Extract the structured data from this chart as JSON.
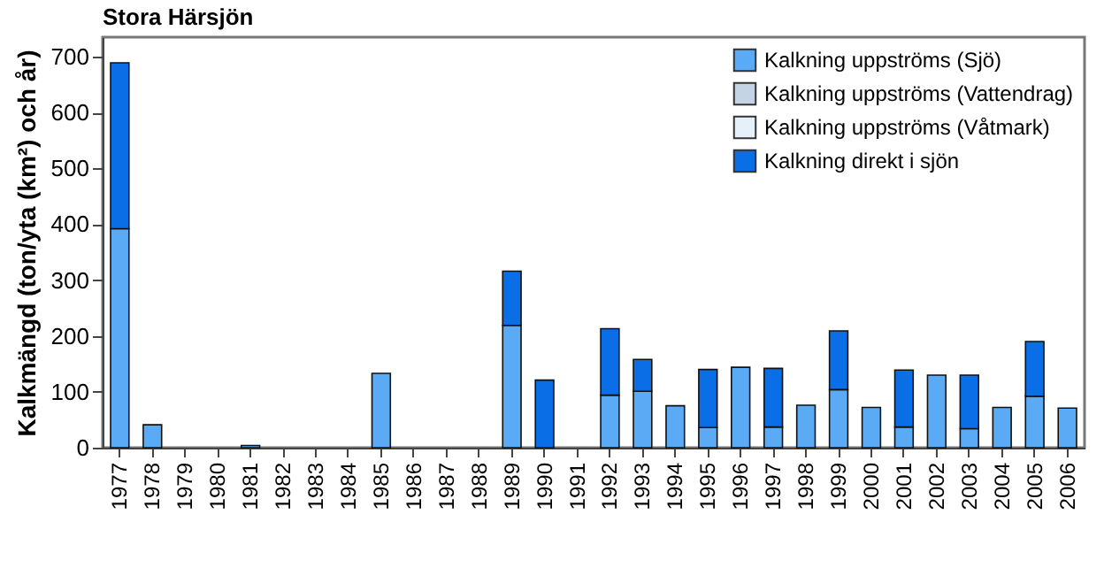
{
  "chart_data": {
    "type": "bar",
    "title": "Stora Härsjön",
    "ylabel": "Kalkmängd (ton/yta (km²) och år)",
    "stacked": true,
    "legend": "top right",
    "grid": false,
    "categories": [
      "1977",
      "1978",
      "1979",
      "1980",
      "1981",
      "1982",
      "1983",
      "1984",
      "1985",
      "1986",
      "1987",
      "1988",
      "1989",
      "1990",
      "1991",
      "1992",
      "1993",
      "1994",
      "1995",
      "1996",
      "1997",
      "1998",
      "1999",
      "2000",
      "2001",
      "2002",
      "2003",
      "2004",
      "2005",
      "2006"
    ],
    "ylim": [
      0,
      735
    ],
    "yticks": [
      0,
      100,
      200,
      300,
      400,
      500,
      600,
      700
    ],
    "series": [
      {
        "name": "Kalkning uppströms (Sjö)",
        "color": "#5aaaf5",
        "values": [
          392,
          41,
          null,
          null,
          4,
          null,
          null,
          null,
          133,
          null,
          null,
          null,
          219,
          null,
          null,
          94,
          101,
          75,
          36,
          144,
          37,
          76,
          104,
          72,
          37,
          130,
          34,
          72,
          92,
          71
        ]
      },
      {
        "name": "Kalkning uppströms (Vattendrag)",
        "color": "#c4d4e4",
        "values": [
          null,
          null,
          null,
          null,
          null,
          null,
          null,
          null,
          null,
          null,
          null,
          null,
          null,
          null,
          null,
          null,
          null,
          null,
          null,
          null,
          null,
          null,
          null,
          null,
          null,
          null,
          null,
          null,
          null,
          null
        ]
      },
      {
        "name": "Kalkning uppströms (Våtmark)",
        "color": "#e6f0fa",
        "values": [
          null,
          null,
          null,
          null,
          null,
          null,
          null,
          null,
          null,
          null,
          null,
          null,
          null,
          null,
          null,
          null,
          null,
          null,
          null,
          null,
          null,
          null,
          null,
          null,
          null,
          null,
          null,
          null,
          null,
          null
        ]
      },
      {
        "name": "Kalkning direkt i sjön",
        "color": "#0a6ee6",
        "values": [
          297,
          null,
          null,
          null,
          null,
          null,
          null,
          null,
          null,
          null,
          null,
          null,
          97,
          121,
          null,
          119,
          57,
          null,
          104,
          null,
          105,
          null,
          105,
          null,
          102,
          null,
          96,
          null,
          98,
          null
        ]
      }
    ]
  }
}
